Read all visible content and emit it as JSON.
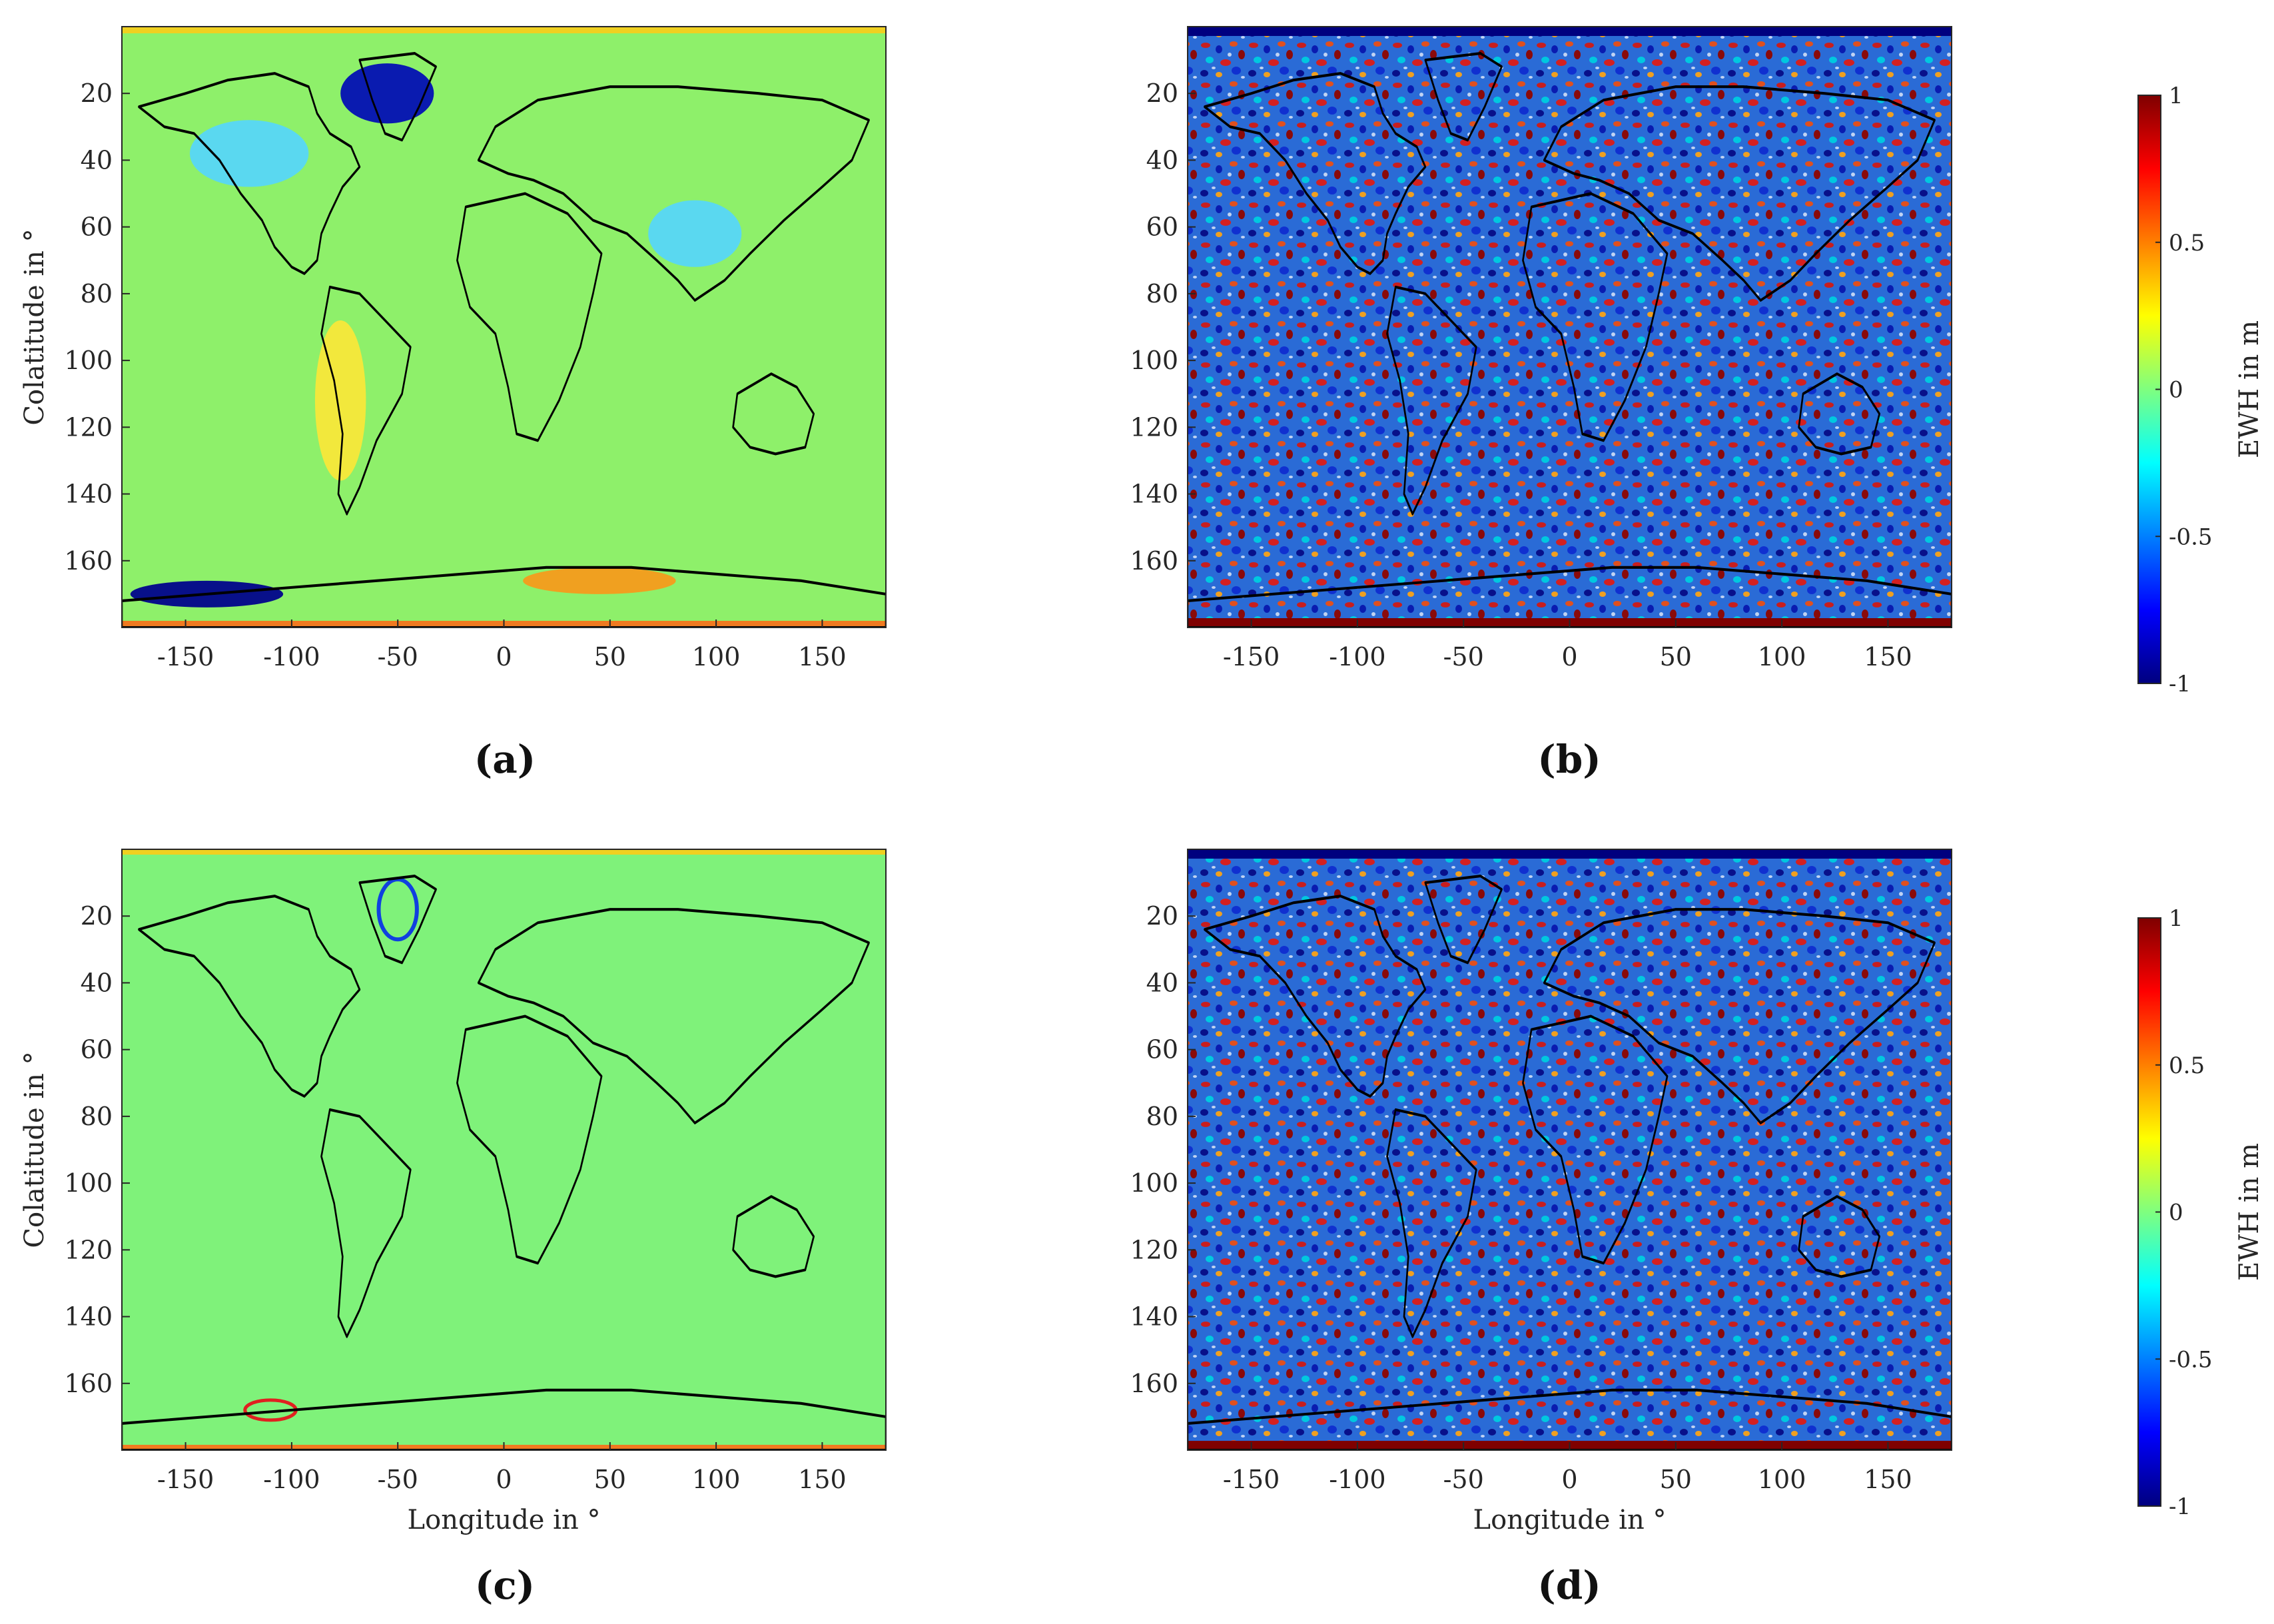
{
  "figure": {
    "panels": [
      {
        "id": "a",
        "label": "(a)",
        "variant": "smooth",
        "ylabel": "Colatitude in °",
        "xlabel": "",
        "xticks": [
          "-150",
          "-100",
          "-50",
          "0",
          "50",
          "100",
          "150"
        ],
        "yticks": [
          "20",
          "40",
          "60",
          "80",
          "100",
          "120",
          "140",
          "160"
        ]
      },
      {
        "id": "b",
        "label": "(b)",
        "variant": "noisy",
        "ylabel": "",
        "xlabel": "",
        "xticks": [
          "-150",
          "-100",
          "-50",
          "0",
          "50",
          "100",
          "150"
        ],
        "yticks": [
          "20",
          "40",
          "60",
          "80",
          "100",
          "120",
          "140",
          "160"
        ]
      },
      {
        "id": "c",
        "label": "(c)",
        "variant": "flat",
        "ylabel": "Colatitude in °",
        "xlabel": "Longitude in °",
        "xticks": [
          "-150",
          "-100",
          "-50",
          "0",
          "50",
          "100",
          "150"
        ],
        "yticks": [
          "20",
          "40",
          "60",
          "80",
          "100",
          "120",
          "140",
          "160"
        ]
      },
      {
        "id": "d",
        "label": "(d)",
        "variant": "noisy",
        "ylabel": "",
        "xlabel": "Longitude in °",
        "xticks": [
          "-150",
          "-100",
          "-50",
          "0",
          "50",
          "100",
          "150"
        ],
        "yticks": [
          "20",
          "40",
          "60",
          "80",
          "100",
          "120",
          "140",
          "160"
        ]
      }
    ],
    "colorbars": [
      {
        "label": "EWH in m",
        "ticks": [
          "1",
          "0.5",
          "0",
          "-0.5",
          "-1"
        ]
      },
      {
        "label": "EWH in m",
        "ticks": [
          "1",
          "0.5",
          "0",
          "-0.5",
          "-1"
        ]
      }
    ],
    "colormap": [
      "#00007f",
      "#0000ff",
      "#007fff",
      "#00ffff",
      "#7fff7f",
      "#ffff00",
      "#ff7f00",
      "#ff0000",
      "#7f0000"
    ]
  },
  "chart_data": {
    "type": "heatmap",
    "x_range": [
      -180,
      180
    ],
    "y_range": [
      0,
      180
    ],
    "color_range": [
      -1,
      1
    ]
  }
}
